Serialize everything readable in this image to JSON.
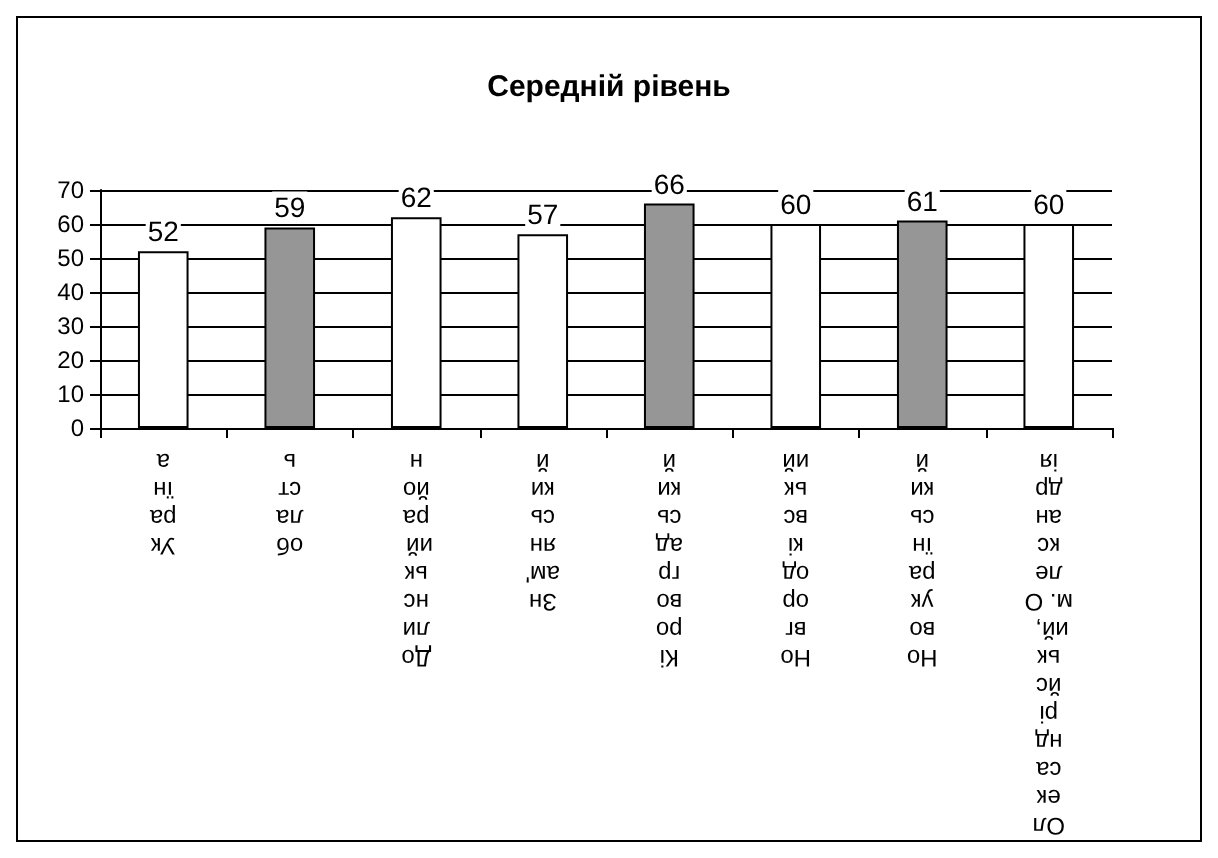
{
  "chart_data": {
    "type": "bar",
    "title": "Середній рівень",
    "categories": [
      "Україна",
      "область",
      "Долинський район",
      "Знам'янський",
      "Кіровоградський",
      "Новгородківський",
      "Новоукраїнський",
      "Олександрійський, м. Олександрія"
    ],
    "values": [
      52,
      59,
      62,
      57,
      66,
      60,
      61,
      60
    ],
    "colors": [
      "#ffffff",
      "#969696",
      "#ffffff",
      "#ffffff",
      "#969696",
      "#ffffff",
      "#969696",
      "#ffffff"
    ],
    "ylim": [
      0,
      70
    ],
    "yticks": [
      0,
      10,
      20,
      30,
      40,
      50,
      60,
      70
    ],
    "grid": "y",
    "data_labels": true
  }
}
